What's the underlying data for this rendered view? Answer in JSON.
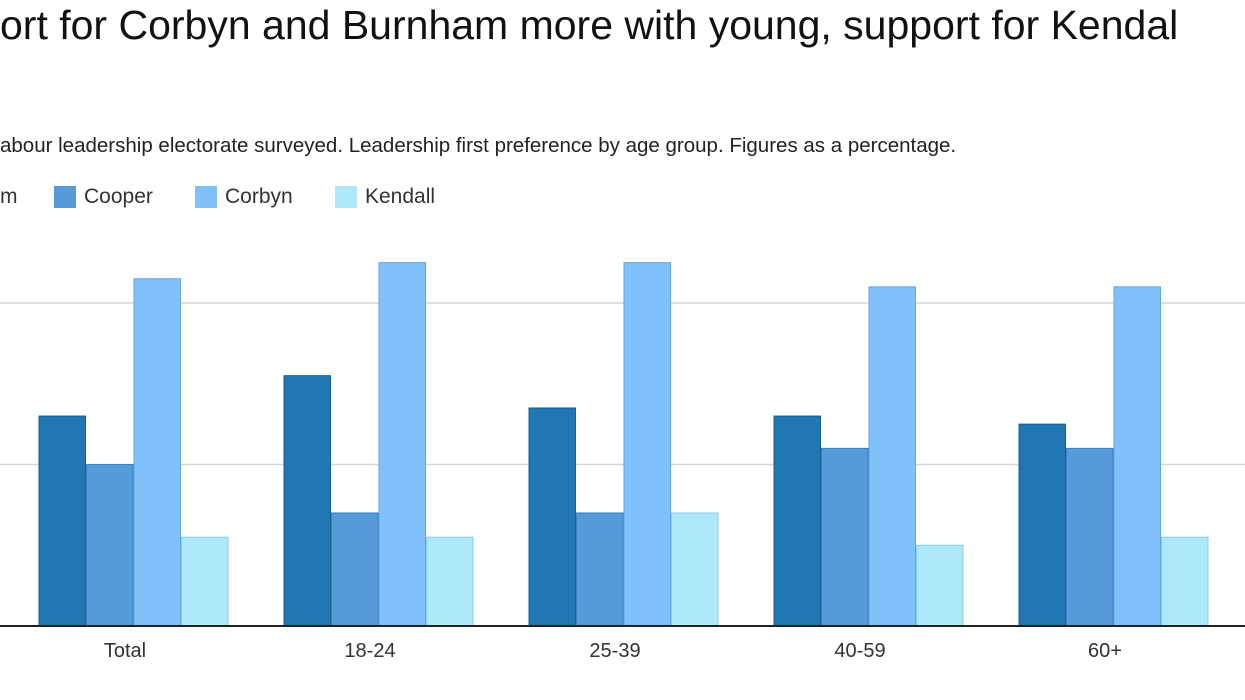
{
  "chart_data": {
    "type": "bar",
    "title": "ort for Corbyn and Burnham more with young, support for Kendal",
    "subtitle": "abour leadership electorate surveyed. Leadership first preference by age group. Figures as a percentage.",
    "categories": [
      "Total",
      "18-24",
      "25-39",
      "40-59",
      "60+"
    ],
    "series": [
      {
        "name": "m",
        "color": "#2177b4",
        "values": [
          26,
          31,
          27,
          26,
          25
        ]
      },
      {
        "name": "Cooper",
        "color": "#559bd9",
        "values": [
          20,
          14,
          14,
          22,
          22
        ]
      },
      {
        "name": "Corbyn",
        "color": "#80c1fb",
        "values": [
          43,
          45,
          45,
          42,
          42
        ]
      },
      {
        "name": "Kendall",
        "color": "#aee9fb",
        "values": [
          11,
          11,
          14,
          10,
          11
        ]
      }
    ],
    "ylim": [
      0,
      40
    ],
    "gridlines": [
      20,
      40
    ],
    "grid": true,
    "legend_position": "top-left"
  }
}
